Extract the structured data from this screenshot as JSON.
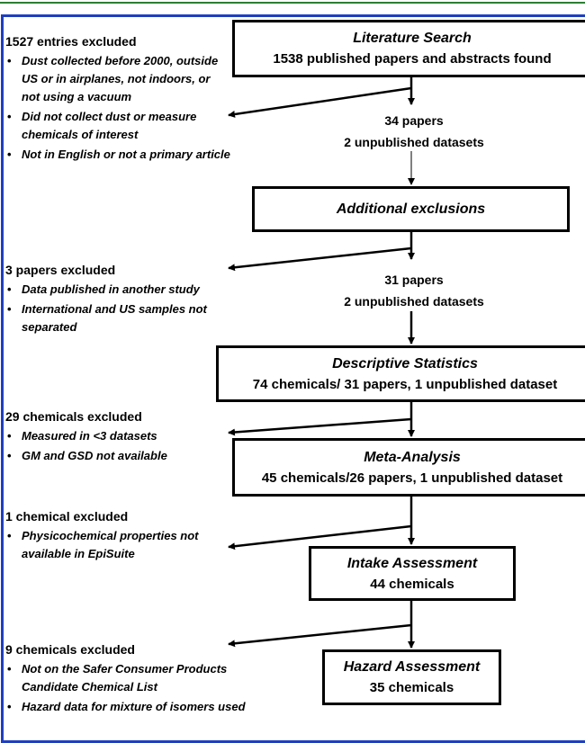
{
  "stages": [
    {
      "title": "Literature Search",
      "lines": [
        "1538 published papers and abstracts found"
      ]
    },
    {
      "title": "Additional exclusions",
      "lines": []
    },
    {
      "title": "Descriptive Statistics",
      "lines": [
        "74 chemicals/ 31 papers, 1 unpublished dataset"
      ]
    },
    {
      "title": "Meta-Analysis",
      "lines": [
        "45 chemicals/26 papers, 1 unpublished dataset"
      ]
    },
    {
      "title": "Intake Assessment",
      "lines": [
        "44 chemicals"
      ]
    },
    {
      "title": "Hazard Assessment",
      "lines": [
        "35 chemicals"
      ]
    }
  ],
  "counts": [
    [
      "34 papers",
      "2 unpublished datasets"
    ],
    [
      "31 papers",
      "2 unpublished datasets"
    ]
  ],
  "exclusions": [
    {
      "heading": "1527 entries excluded",
      "bullets": [
        "Dust collected before 2000, outside US or in airplanes, not indoors, or not using a vacuum",
        "Did not collect dust or measure chemicals of interest",
        "Not in English or not a primary article"
      ]
    },
    {
      "heading": "3 papers excluded",
      "bullets": [
        "Data published in another study",
        "International and US samples not separated"
      ]
    },
    {
      "heading": "29 chemicals excluded",
      "bullets": [
        "Measured in <3 datasets",
        "GM and GSD not available"
      ]
    },
    {
      "heading": "1 chemical excluded",
      "bullets": [
        "Physicochemical properties not available in EpiSuite"
      ]
    },
    {
      "heading": "9 chemicals excluded",
      "bullets": [
        "Not on the Safer Consumer Products Candidate Chemical List",
        "Hazard data for mixture of isomers used"
      ]
    }
  ]
}
